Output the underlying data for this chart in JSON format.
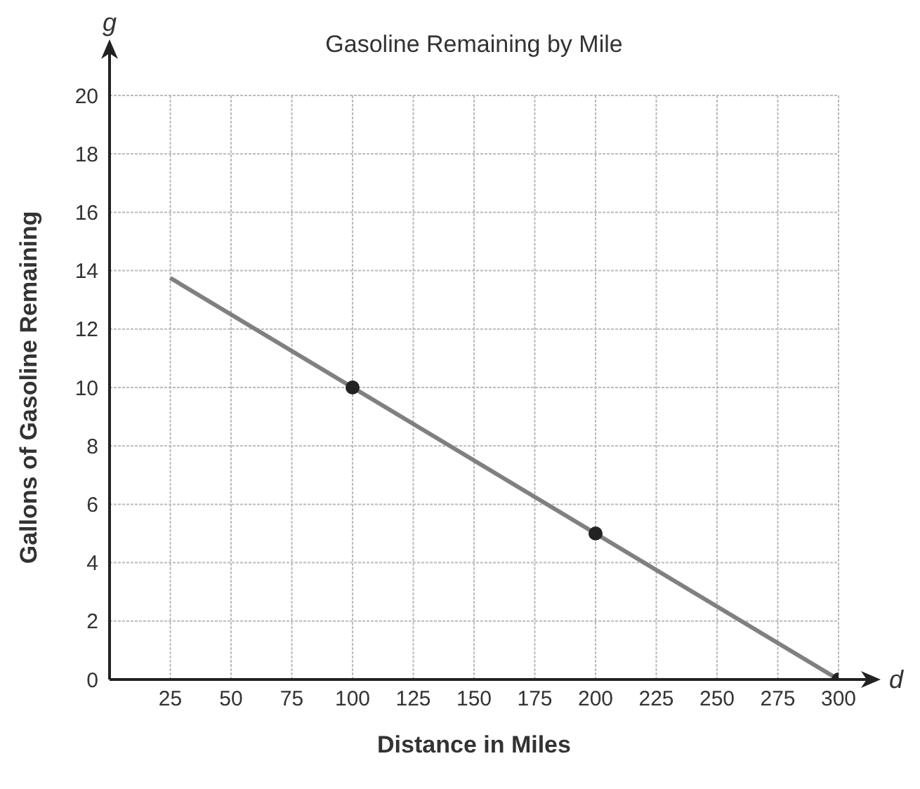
{
  "chart_data": {
    "type": "line",
    "title": "Gasoline Remaining by Mile",
    "xlabel": "Distance in Miles",
    "ylabel": "Gallons of Gasoline Remaining",
    "annotations": [
      "g",
      "d"
    ],
    "xlim": [
      0,
      300
    ],
    "xticks": [
      25,
      50,
      75,
      100,
      125,
      150,
      175,
      200,
      225,
      250,
      275,
      300
    ],
    "ylim": [
      0,
      20
    ],
    "yticks": [
      0,
      2,
      4,
      6,
      8,
      10,
      12,
      14,
      16,
      18,
      20
    ],
    "grid": true,
    "series": [
      {
        "color": "#808080",
        "x": [
          25,
          300
        ],
        "values": [
          13.75,
          0
        ]
      },
      {
        "type": "scatter",
        "color": "#222222",
        "marker": "circle",
        "x": [
          100,
          200,
          300
        ],
        "values": [
          10,
          5,
          0
        ]
      }
    ]
  }
}
